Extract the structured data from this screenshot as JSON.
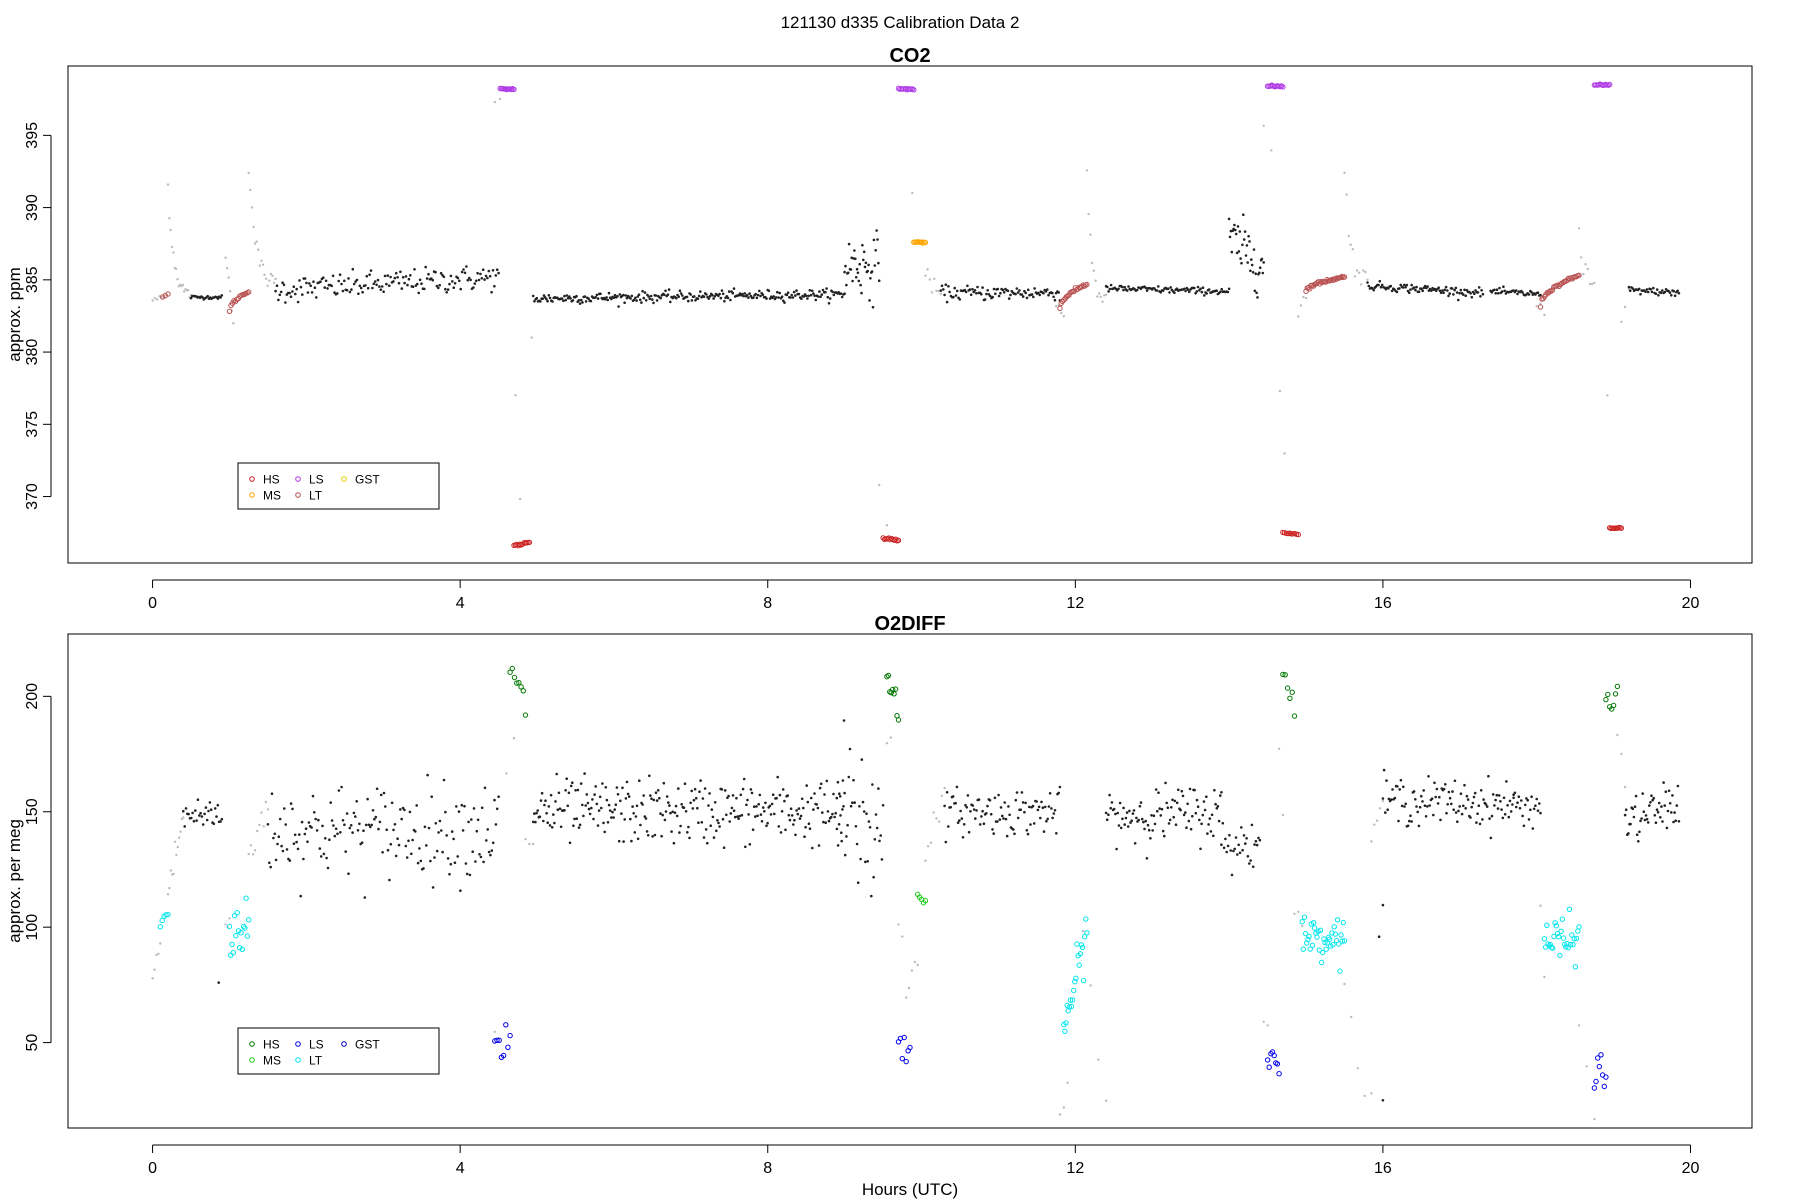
{
  "figure_title": "121130   d335   Calibration Data 2",
  "colors": {
    "HS": "#cc2222",
    "MS": "#ffa500",
    "LS": "#b03ae6",
    "LT": "#b85050",
    "GST": "#e8d000",
    "HS2": "#007700",
    "MS2": "#22cc22",
    "LS2": "#0000ee",
    "LT2": "#00e5ee",
    "GST2": "#0000aa",
    "sample": "#222222",
    "flush": "#bbbbbb"
  },
  "chart_data": [
    {
      "type": "scatter",
      "title": "CO2",
      "xlabel": "",
      "ylabel": "approx. ppm",
      "xlim": [
        -1.1,
        20.8
      ],
      "ylim": [
        365.4,
        399.8
      ],
      "xticks": [
        0,
        4,
        8,
        12,
        16,
        20
      ],
      "yticks": [
        370,
        375,
        380,
        385,
        390,
        395
      ],
      "legend": {
        "position": "bottom-left",
        "entries": [
          "HS",
          "MS",
          "LS",
          "LT",
          "GST"
        ]
      },
      "segments": [
        {
          "kind": "flush",
          "x0": 0.0,
          "x1": 0.15,
          "n": 6,
          "y0": 383.6,
          "y1": 383.8,
          "noise": 0.1
        },
        {
          "kind": "LT",
          "x0": 0.13,
          "x1": 0.2,
          "n": 3,
          "y0": 383.8,
          "y1": 384.0,
          "noise": 0.05
        },
        {
          "kind": "flush",
          "x0": 0.2,
          "x1": 0.5,
          "n": 18,
          "y0": 391.5,
          "y1": 383.8,
          "noise": 0.3,
          "decay": true
        },
        {
          "kind": "sample",
          "x0": 0.5,
          "x1": 0.9,
          "n": 25,
          "y0": 383.8,
          "y1": 383.8,
          "noise": 0.06
        },
        {
          "kind": "flush",
          "x0": 0.95,
          "x1": 1.05,
          "n": 6,
          "y0": 386.5,
          "y1": 382.4,
          "noise": 0.3
        },
        {
          "kind": "LT",
          "x0": 1.0,
          "x1": 1.25,
          "n": 14,
          "y0": 382.8,
          "y1": 384.2,
          "noise": 0.05,
          "curve": true
        },
        {
          "kind": "flush",
          "x0": 1.25,
          "x1": 1.6,
          "n": 18,
          "y0": 393.0,
          "y1": 384.6,
          "noise": 0.3,
          "decay": true
        },
        {
          "kind": "sample",
          "x0": 1.6,
          "x1": 4.5,
          "n": 160,
          "y0": 384.3,
          "y1": 385.2,
          "noise": 0.45
        },
        {
          "kind": "flush",
          "x0": 4.45,
          "x1": 4.52,
          "n": 2,
          "y0": 397.2,
          "y1": 397.6,
          "noise": 0.1
        },
        {
          "kind": "LS",
          "x0": 4.52,
          "x1": 4.7,
          "n": 12,
          "y0": 398.2,
          "y1": 398.2,
          "noise": 0.03
        },
        {
          "kind": "flush",
          "x0": 4.72,
          "x1": 4.78,
          "n": 2,
          "y0": 377.0,
          "y1": 370.0,
          "noise": 0.1
        },
        {
          "kind": "HS",
          "x0": 4.7,
          "x1": 4.9,
          "n": 12,
          "y0": 366.6,
          "y1": 366.8,
          "noise": 0.05
        },
        {
          "kind": "flush",
          "x0": 4.93,
          "x1": 4.96,
          "n": 1,
          "y0": 381.0,
          "y1": 381.0,
          "noise": 0
        },
        {
          "kind": "sample",
          "x0": 4.95,
          "x1": 9.0,
          "n": 260,
          "y0": 383.7,
          "y1": 384.0,
          "noise": 0.18
        },
        {
          "kind": "sample",
          "x0": 9.0,
          "x1": 9.45,
          "n": 40,
          "y0": 386.0,
          "y1": 386.0,
          "noise": 1.1
        },
        {
          "kind": "flush",
          "x0": 9.45,
          "x1": 9.55,
          "n": 2,
          "y0": 371.0,
          "y1": 368.0,
          "noise": 0.1
        },
        {
          "kind": "HS",
          "x0": 9.5,
          "x1": 9.7,
          "n": 12,
          "y0": 367.1,
          "y1": 367.0,
          "noise": 0.04
        },
        {
          "kind": "LS",
          "x0": 9.7,
          "x1": 9.9,
          "n": 12,
          "y0": 398.2,
          "y1": 398.2,
          "noise": 0.03
        },
        {
          "kind": "flush",
          "x0": 9.88,
          "x1": 9.92,
          "n": 1,
          "y0": 391.0,
          "y1": 391.0,
          "noise": 0
        },
        {
          "kind": "MS",
          "x0": 9.9,
          "x1": 10.05,
          "n": 10,
          "y0": 387.6,
          "y1": 387.6,
          "noise": 0.03
        },
        {
          "kind": "flush",
          "x0": 10.05,
          "x1": 10.25,
          "n": 8,
          "y0": 385.2,
          "y1": 384.0,
          "noise": 0.3
        },
        {
          "kind": "sample",
          "x0": 10.25,
          "x1": 11.8,
          "n": 95,
          "y0": 384.1,
          "y1": 384.1,
          "noise": 0.25
        },
        {
          "kind": "flush",
          "x0": 11.75,
          "x1": 11.85,
          "n": 4,
          "y0": 383.2,
          "y1": 382.6,
          "noise": 0.2
        },
        {
          "kind": "LT",
          "x0": 11.8,
          "x1": 12.15,
          "n": 22,
          "y0": 383.0,
          "y1": 384.7,
          "noise": 0.05,
          "curve": true
        },
        {
          "kind": "flush",
          "x0": 12.15,
          "x1": 12.4,
          "n": 12,
          "y0": 392.5,
          "y1": 383.4,
          "noise": 0.4,
          "decay": true
        },
        {
          "kind": "sample",
          "x0": 12.4,
          "x1": 14.0,
          "n": 100,
          "y0": 384.4,
          "y1": 384.2,
          "noise": 0.12
        },
        {
          "kind": "sample",
          "x0": 14.0,
          "x1": 14.45,
          "n": 40,
          "y0": 387.8,
          "y1": 386.0,
          "noise": 1.0
        },
        {
          "kind": "flush",
          "x0": 14.45,
          "x1": 14.55,
          "n": 2,
          "y0": 395.4,
          "y1": 394.0,
          "noise": 0.2
        },
        {
          "kind": "LS",
          "x0": 14.5,
          "x1": 14.7,
          "n": 12,
          "y0": 398.4,
          "y1": 398.4,
          "noise": 0.03
        },
        {
          "kind": "flush",
          "x0": 14.66,
          "x1": 14.72,
          "n": 2,
          "y0": 377.5,
          "y1": 373.0,
          "noise": 0.2
        },
        {
          "kind": "HS",
          "x0": 14.7,
          "x1": 14.9,
          "n": 10,
          "y0": 367.5,
          "y1": 367.4,
          "noise": 0.03
        },
        {
          "kind": "flush",
          "x0": 14.9,
          "x1": 15.0,
          "n": 4,
          "y0": 382.8,
          "y1": 384.0,
          "noise": 0.2
        },
        {
          "kind": "LT",
          "x0": 15.0,
          "x1": 15.5,
          "n": 32,
          "y0": 384.2,
          "y1": 385.2,
          "noise": 0.05,
          "curve": true
        },
        {
          "kind": "flush",
          "x0": 15.5,
          "x1": 15.8,
          "n": 12,
          "y0": 393.0,
          "y1": 384.8,
          "noise": 0.4,
          "decay": true
        },
        {
          "kind": "sample",
          "x0": 15.8,
          "x1": 17.3,
          "n": 95,
          "y0": 384.6,
          "y1": 384.1,
          "noise": 0.15
        },
        {
          "kind": "sample",
          "x0": 17.4,
          "x1": 18.05,
          "n": 40,
          "y0": 384.2,
          "y1": 384.0,
          "noise": 0.12
        },
        {
          "kind": "flush",
          "x0": 18.0,
          "x1": 18.1,
          "n": 3,
          "y0": 383.2,
          "y1": 382.8,
          "noise": 0.2
        },
        {
          "kind": "LT",
          "x0": 18.05,
          "x1": 18.55,
          "n": 30,
          "y0": 383.2,
          "y1": 385.3,
          "noise": 0.05,
          "curve": true
        },
        {
          "kind": "flush",
          "x0": 18.55,
          "x1": 18.75,
          "n": 8,
          "y0": 388.8,
          "y1": 384.5,
          "noise": 0.4,
          "decay": true
        },
        {
          "kind": "LS",
          "x0": 18.75,
          "x1": 18.95,
          "n": 12,
          "y0": 398.5,
          "y1": 398.5,
          "noise": 0.03
        },
        {
          "kind": "flush",
          "x0": 18.92,
          "x1": 18.97,
          "n": 1,
          "y0": 377.0,
          "y1": 377.0,
          "noise": 0
        },
        {
          "kind": "HS",
          "x0": 18.95,
          "x1": 19.1,
          "n": 10,
          "y0": 367.8,
          "y1": 367.8,
          "noise": 0.03
        },
        {
          "kind": "flush",
          "x0": 19.1,
          "x1": 19.2,
          "n": 3,
          "y0": 382.2,
          "y1": 384.2,
          "noise": 0.3
        },
        {
          "kind": "sample",
          "x0": 19.2,
          "x1": 19.85,
          "n": 40,
          "y0": 384.3,
          "y1": 384.1,
          "noise": 0.12
        }
      ]
    },
    {
      "type": "scatter",
      "title": "O2DIFF",
      "xlabel": "Hours (UTC)",
      "ylabel": "approx. per meg",
      "xlim": [
        -1.1,
        20.8
      ],
      "ylim": [
        13,
        227
      ],
      "xticks": [
        0,
        4,
        8,
        12,
        16,
        20
      ],
      "yticks": [
        50,
        100,
        150,
        200
      ],
      "legend": {
        "position": "bottom-left",
        "entries": [
          "HS",
          "MS",
          "LS",
          "LT",
          "GST"
        ]
      },
      "segments": [
        {
          "kind": "flush",
          "x0": 0.0,
          "x1": 0.1,
          "n": 5,
          "y0": 78,
          "y1": 92,
          "noise": 3
        },
        {
          "kind": "LT2",
          "x0": 0.1,
          "x1": 0.2,
          "n": 5,
          "y0": 102,
          "y1": 106,
          "noise": 2
        },
        {
          "kind": "flush",
          "x0": 0.2,
          "x1": 0.4,
          "n": 12,
          "y0": 115,
          "y1": 148,
          "noise": 4
        },
        {
          "kind": "sample",
          "x0": 0.4,
          "x1": 0.9,
          "n": 30,
          "y0": 148,
          "y1": 149,
          "noise": 4
        },
        {
          "kind": "sample",
          "x0": 0.86,
          "x1": 0.9,
          "n": 1,
          "y0": 76,
          "y1": 76,
          "noise": 0
        },
        {
          "kind": "flush",
          "x0": 0.95,
          "x1": 1.0,
          "n": 3,
          "y0": 100,
          "y1": 104,
          "noise": 3
        },
        {
          "kind": "LT2",
          "x0": 1.0,
          "x1": 1.25,
          "n": 16,
          "y0": 98,
          "y1": 100,
          "noise": 6
        },
        {
          "kind": "flush",
          "x0": 1.25,
          "x1": 1.5,
          "n": 10,
          "y0": 130,
          "y1": 152,
          "noise": 6
        },
        {
          "kind": "sample",
          "x0": 1.5,
          "x1": 4.5,
          "n": 170,
          "y0": 142,
          "y1": 142,
          "noise": 10
        },
        {
          "kind": "flush",
          "x0": 4.45,
          "x1": 4.5,
          "n": 2,
          "y0": 55,
          "y1": 52,
          "noise": 1
        },
        {
          "kind": "LS2",
          "x0": 4.45,
          "x1": 4.65,
          "n": 8,
          "y0": 42,
          "y1": 50,
          "noise": 8
        },
        {
          "kind": "flush",
          "x0": 4.6,
          "x1": 4.7,
          "n": 2,
          "y0": 170,
          "y1": 180,
          "noise": 3
        },
        {
          "kind": "HS2",
          "x0": 4.65,
          "x1": 4.85,
          "n": 8,
          "y0": 210,
          "y1": 196,
          "noise": 4
        },
        {
          "kind": "flush",
          "x0": 4.85,
          "x1": 4.95,
          "n": 3,
          "y0": 140,
          "y1": 133,
          "noise": 3
        },
        {
          "kind": "sample",
          "x0": 4.95,
          "x1": 9.0,
          "n": 280,
          "y0": 150,
          "y1": 150,
          "noise": 7
        },
        {
          "kind": "sample",
          "x0": 8.9,
          "x1": 9.5,
          "n": 40,
          "y0": 150,
          "y1": 140,
          "noise": 18
        },
        {
          "kind": "flush",
          "x0": 9.55,
          "x1": 9.6,
          "n": 2,
          "y0": 180,
          "y1": 182,
          "noise": 2
        },
        {
          "kind": "HS2",
          "x0": 9.55,
          "x1": 9.7,
          "n": 9,
          "y0": 212,
          "y1": 198,
          "noise": 8
        },
        {
          "kind": "flush",
          "x0": 9.7,
          "x1": 9.75,
          "n": 2,
          "y0": 103,
          "y1": 98,
          "noise": 2
        },
        {
          "kind": "LS2",
          "x0": 9.7,
          "x1": 9.85,
          "n": 7,
          "y0": 46,
          "y1": 48,
          "noise": 4
        },
        {
          "kind": "flush",
          "x0": 9.8,
          "x1": 9.95,
          "n": 5,
          "y0": 65,
          "y1": 90,
          "noise": 4
        },
        {
          "kind": "MS2",
          "x0": 9.95,
          "x1": 10.05,
          "n": 5,
          "y0": 116,
          "y1": 110,
          "noise": 2
        },
        {
          "kind": "flush",
          "x0": 10.05,
          "x1": 10.3,
          "n": 8,
          "y0": 140,
          "y1": 150,
          "noise": 5
        },
        {
          "kind": "sample",
          "x0": 10.3,
          "x1": 11.8,
          "n": 95,
          "y0": 150,
          "y1": 150,
          "noise": 5
        },
        {
          "kind": "flush",
          "x0": 11.8,
          "x1": 11.9,
          "n": 3,
          "y0": 22,
          "y1": 26,
          "noise": 3
        },
        {
          "kind": "LT2",
          "x0": 11.85,
          "x1": 12.15,
          "n": 22,
          "y0": 55,
          "y1": 98,
          "noise": 5
        },
        {
          "kind": "flush",
          "x0": 12.1,
          "x1": 12.4,
          "n": 4,
          "y0": 97,
          "y1": 25,
          "noise": 5
        },
        {
          "kind": "sample",
          "x0": 12.4,
          "x1": 13.9,
          "n": 100,
          "y0": 148,
          "y1": 150,
          "noise": 6
        },
        {
          "kind": "sample",
          "x0": 13.9,
          "x1": 14.4,
          "n": 30,
          "y0": 136,
          "y1": 136,
          "noise": 6
        },
        {
          "kind": "flush",
          "x0": 14.45,
          "x1": 14.5,
          "n": 2,
          "y0": 60,
          "y1": 55,
          "noise": 2
        },
        {
          "kind": "LS2",
          "x0": 14.5,
          "x1": 14.65,
          "n": 8,
          "y0": 44,
          "y1": 45,
          "noise": 3
        },
        {
          "kind": "flush",
          "x0": 14.65,
          "x1": 14.7,
          "n": 2,
          "y0": 178,
          "y1": 150,
          "noise": 3
        },
        {
          "kind": "HS2",
          "x0": 14.7,
          "x1": 14.85,
          "n": 6,
          "y0": 208,
          "y1": 196,
          "noise": 3
        },
        {
          "kind": "flush",
          "x0": 14.85,
          "x1": 14.95,
          "n": 3,
          "y0": 106,
          "y1": 102,
          "noise": 2
        },
        {
          "kind": "LT2",
          "x0": 14.95,
          "x1": 15.5,
          "n": 38,
          "y0": 96,
          "y1": 96,
          "noise": 4
        },
        {
          "kind": "flush",
          "x0": 15.5,
          "x1": 15.85,
          "n": 5,
          "y0": 71,
          "y1": 23,
          "noise": 4
        },
        {
          "kind": "flush",
          "x0": 15.85,
          "x1": 16.0,
          "n": 5,
          "y0": 137,
          "y1": 158,
          "noise": 4
        },
        {
          "kind": "sample",
          "x0": 15.95,
          "x1": 16.0,
          "n": 2,
          "y0": 98,
          "y1": 108,
          "noise": 3
        },
        {
          "kind": "sample",
          "x0": 16.0,
          "x1": 17.7,
          "n": 110,
          "y0": 155,
          "y1": 153,
          "noise": 5
        },
        {
          "kind": "sample",
          "x0": 17.7,
          "x1": 18.05,
          "n": 22,
          "y0": 153,
          "y1": 152,
          "noise": 4
        },
        {
          "kind": "flush",
          "x0": 18.05,
          "x1": 18.1,
          "n": 2,
          "y0": 110,
          "y1": 80,
          "noise": 2
        },
        {
          "kind": "LT2",
          "x0": 18.1,
          "x1": 18.55,
          "n": 30,
          "y0": 94,
          "y1": 94,
          "noise": 5
        },
        {
          "kind": "flush",
          "x0": 18.55,
          "x1": 18.75,
          "n": 3,
          "y0": 56,
          "y1": 24,
          "noise": 3
        },
        {
          "kind": "LS2",
          "x0": 18.75,
          "x1": 18.9,
          "n": 8,
          "y0": 35,
          "y1": 38,
          "noise": 5
        },
        {
          "kind": "HS2",
          "x0": 18.9,
          "x1": 19.05,
          "n": 7,
          "y0": 194,
          "y1": 200,
          "noise": 4
        },
        {
          "kind": "flush",
          "x0": 19.05,
          "x1": 19.15,
          "n": 3,
          "y0": 185,
          "y1": 165,
          "noise": 3
        },
        {
          "kind": "sample",
          "x0": 19.15,
          "x1": 19.85,
          "n": 50,
          "y0": 145,
          "y1": 154,
          "noise": 5
        },
        {
          "kind": "sample",
          "x0": 16.0,
          "x1": 16.05,
          "n": 1,
          "y0": 25,
          "y1": 25,
          "noise": 0
        }
      ]
    }
  ]
}
